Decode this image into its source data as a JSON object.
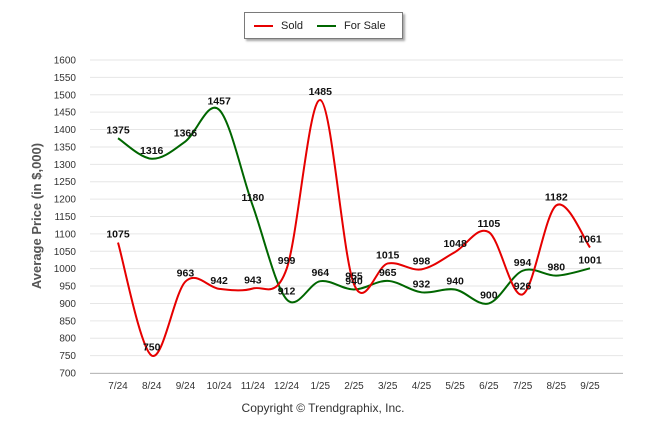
{
  "chart_data": {
    "type": "line",
    "title": "",
    "xlabel": "",
    "ylabel": "Average Price (in $,000)",
    "categories": [
      "7/24",
      "8/24",
      "9/24",
      "10/24",
      "11/24",
      "12/24",
      "1/25",
      "2/25",
      "3/25",
      "4/25",
      "5/25",
      "6/25",
      "7/25",
      "8/25",
      "9/25"
    ],
    "ylim": [
      700,
      1600
    ],
    "ytick_step": 50,
    "series": [
      {
        "name": "Sold",
        "color": "#e60000",
        "values": [
          1075,
          750,
          963,
          942,
          943,
          999,
          1485,
          955,
          1015,
          998,
          1048,
          1105,
          926,
          1182,
          1061
        ]
      },
      {
        "name": "For Sale",
        "color": "#006600",
        "values": [
          1375,
          1316,
          1366,
          1457,
          1180,
          912,
          964,
          940,
          965,
          932,
          940,
          900,
          994,
          980,
          1001
        ]
      }
    ],
    "legend_position": "top-center",
    "grid": true
  },
  "footer": {
    "copyright": "Copyright © Trendgraphix, Inc."
  }
}
